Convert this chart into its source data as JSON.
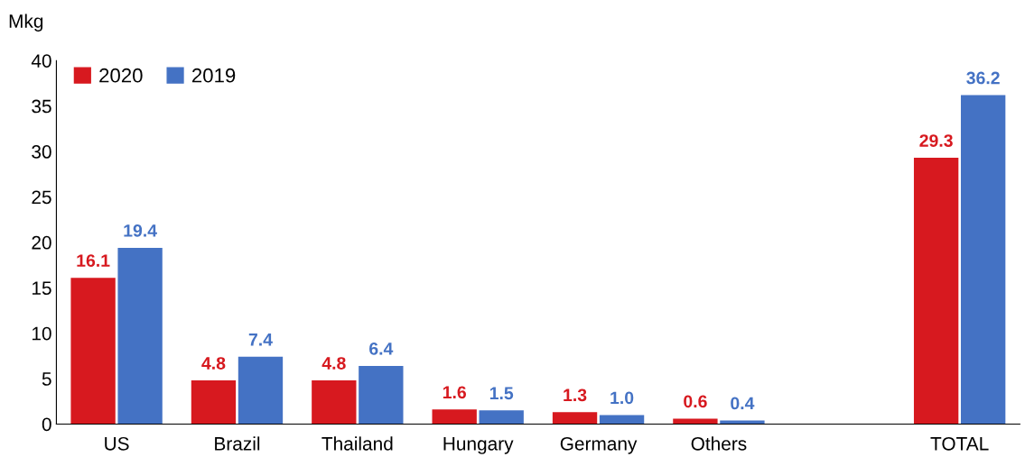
{
  "chart_data": {
    "type": "bar",
    "ylabel": "Mkg",
    "categories": [
      "US",
      "Brazil",
      "Thailand",
      "Hungary",
      "Germany",
      "Others",
      null,
      "TOTAL"
    ],
    "series": [
      {
        "name": "2020",
        "color": "#d7191f",
        "values": [
          16.1,
          4.8,
          4.8,
          1.6,
          1.3,
          0.6,
          null,
          29.3
        ],
        "value_labels": [
          "16.1",
          "4.8",
          "4.8",
          "1.6",
          "1.3",
          "0.6",
          null,
          "29.3"
        ]
      },
      {
        "name": "2019",
        "color": "#4472c4",
        "values": [
          19.4,
          7.4,
          6.4,
          1.5,
          1.0,
          0.4,
          null,
          36.2
        ],
        "value_labels": [
          "19.4",
          "7.4",
          "6.4",
          "1.5",
          "1.0",
          "0.4",
          null,
          "36.2"
        ]
      }
    ],
    "ylim": [
      0,
      40
    ],
    "yticks": [
      0,
      5,
      10,
      15,
      20,
      25,
      30,
      35,
      40
    ],
    "grid": false,
    "legend": "top left"
  }
}
